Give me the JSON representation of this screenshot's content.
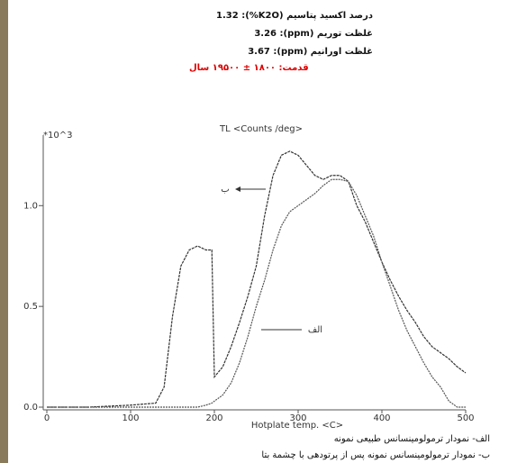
{
  "header": {
    "lines": [
      "درصد اکسید پتاسیم (K2O%): 1.32",
      "غلظت توریم (ppm): 3.26",
      "غلظت اورانیم (ppm): 3.67"
    ],
    "age": "قدمت: ۱۸۰۰ ± ۱۹۵۰۰ سال"
  },
  "chart_data": {
    "type": "line",
    "title": "TL <Counts /deg>",
    "y_multiplier": "*10^3",
    "x_label": "Hotplate temp. <C>",
    "x": [
      0,
      50,
      100,
      130,
      140,
      150,
      160,
      170,
      180,
      190,
      197,
      200,
      210,
      220,
      230,
      240,
      250,
      260,
      270,
      280,
      290,
      300,
      310,
      320,
      330,
      340,
      350,
      360,
      370,
      380,
      390,
      400,
      410,
      420,
      430,
      440,
      450,
      460,
      470,
      480,
      490,
      500
    ],
    "series": [
      {
        "name": "ب",
        "color": "#333333",
        "values": [
          0,
          0,
          0.01,
          0.02,
          0.1,
          0.45,
          0.7,
          0.78,
          0.8,
          0.78,
          0.78,
          0.15,
          0.2,
          0.3,
          0.42,
          0.55,
          0.7,
          0.95,
          1.15,
          1.25,
          1.27,
          1.25,
          1.2,
          1.15,
          1.13,
          1.15,
          1.15,
          1.12,
          1.0,
          0.92,
          0.82,
          0.72,
          0.63,
          0.55,
          0.48,
          0.42,
          0.35,
          0.3,
          0.27,
          0.24,
          0.2,
          0.17
        ]
      },
      {
        "name": "الف",
        "color": "#555555",
        "values": [
          0,
          0,
          0,
          0,
          0,
          0,
          0,
          0,
          0,
          0.01,
          0.02,
          0.03,
          0.06,
          0.12,
          0.22,
          0.35,
          0.5,
          0.63,
          0.78,
          0.9,
          0.97,
          1.0,
          1.03,
          1.06,
          1.1,
          1.13,
          1.13,
          1.12,
          1.05,
          0.95,
          0.85,
          0.72,
          0.6,
          0.48,
          0.38,
          0.3,
          0.22,
          0.15,
          0.1,
          0.03,
          0,
          0
        ]
      }
    ],
    "xlim": [
      0,
      500
    ],
    "xticks": [
      0,
      100,
      200,
      300,
      400,
      500
    ],
    "ylim": [
      0,
      1.35
    ],
    "yticks": [
      {
        "value": 0,
        "label": "0.0"
      },
      {
        "value": 0.5,
        "label": "0.5"
      },
      {
        "value": 1,
        "label": "1.0"
      }
    ],
    "grid": false
  },
  "footer": {
    "lines": [
      "الف- نمودار ترمولومینسانس طبیعی نمونه",
      "ب- نمودار ترمولومینسانس نمونه پس از پرتودهی با چشمة بتا"
    ]
  }
}
